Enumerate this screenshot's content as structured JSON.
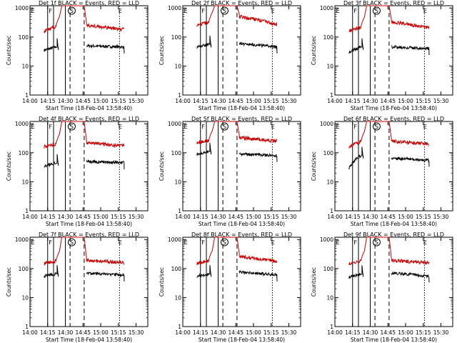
{
  "chart_data": [
    {
      "type": "line",
      "title": "Det 1f BLACK = Events, RED = LLD",
      "ylabel": "Counts/sec",
      "xlabel": "Start Time (18-Feb-04 13:58:40)",
      "x_ticks": [
        "14:00",
        "14:15",
        "14:30",
        "14:45",
        "15:00",
        "15:15",
        "15:30"
      ],
      "y_ticks": [
        "1",
        "10",
        "100",
        "1000"
      ],
      "yscale": "log",
      "ylim": [
        1,
        1200
      ],
      "flags": [
        "E",
        "F",
        "S",
        "E"
      ],
      "series": [
        {
          "name": "Events",
          "color": "#000000",
          "values": {
            "pre": [
              35,
              45
            ],
            "post": [
              50,
              45
            ]
          }
        },
        {
          "name": "LLD",
          "color": "#cc0000",
          "values": {
            "pre": [
              160,
              230
            ],
            "peak": 1000,
            "post": [
              250,
              180
            ]
          }
        }
      ]
    },
    {
      "type": "line",
      "title": "Det 2f BLACK = Events, RED = LLD",
      "ylabel": "Counts/sec",
      "xlabel": "Start Time (18-Feb-04 13:58:40)",
      "x_ticks": [
        "14:00",
        "14:15",
        "14:30",
        "14:45",
        "15:00",
        "15:15",
        "15:30"
      ],
      "y_ticks": [
        "1",
        "10",
        "100",
        "1000"
      ],
      "yscale": "log",
      "ylim": [
        1,
        1200
      ],
      "flags": [
        "E",
        "F",
        "S",
        "E"
      ],
      "series": [
        {
          "name": "Events",
          "color": "#000000",
          "values": {
            "pre": [
              45,
              55
            ],
            "post": [
              60,
              45
            ]
          }
        },
        {
          "name": "LLD",
          "color": "#cc0000",
          "values": {
            "pre": [
              260,
              320
            ],
            "peak": 1000,
            "post": [
              500,
              270
            ]
          }
        }
      ]
    },
    {
      "type": "line",
      "title": "Det 3f BLACK = Events, RED = LLD",
      "ylabel": "Counts/sec",
      "xlabel": "Start Time (18-Feb-04 13:58:40)",
      "x_ticks": [
        "14:00",
        "14:15",
        "14:30",
        "14:45",
        "15:00",
        "15:15",
        "15:30"
      ],
      "y_ticks": [
        "1",
        "10",
        "100",
        "1000"
      ],
      "yscale": "log",
      "ylim": [
        1,
        1200
      ],
      "flags": [
        "E",
        "F",
        "S",
        "E"
      ],
      "series": [
        {
          "name": "Events",
          "color": "#000000",
          "values": {
            "pre": [
              30,
              45
            ],
            "post": [
              45,
              40
            ]
          }
        },
        {
          "name": "LLD",
          "color": "#cc0000",
          "values": {
            "pre": [
              170,
              220
            ],
            "peak": 1000,
            "post": [
              330,
              200
            ]
          }
        }
      ]
    },
    {
      "type": "line",
      "title": "Det 4f BLACK = Events, RED = LLD",
      "ylabel": "Counts/sec",
      "xlabel": "Start Time (18-Feb-04 13:58:40)",
      "x_ticks": [
        "14:00",
        "14:15",
        "14:30",
        "14:45",
        "15:00",
        "15:15",
        "15:30"
      ],
      "y_ticks": [
        "1",
        "10",
        "100",
        "1000"
      ],
      "yscale": "log",
      "ylim": [
        1,
        1200
      ],
      "flags": [
        "E",
        "F",
        "S",
        "E"
      ],
      "series": [
        {
          "name": "Events",
          "color": "#000000",
          "values": {
            "pre": [
              35,
              45
            ],
            "post": [
              50,
              45
            ]
          }
        },
        {
          "name": "LLD",
          "color": "#cc0000",
          "values": {
            "pre": [
              160,
              200
            ],
            "peak": 1000,
            "post": [
              220,
              170
            ]
          }
        }
      ]
    },
    {
      "type": "line",
      "title": "Det 5f BLACK = Events, RED = LLD",
      "ylabel": "Counts/sec",
      "xlabel": "Start Time (18-Feb-04 13:58:40)",
      "x_ticks": [
        "14:00",
        "14:15",
        "14:30",
        "14:45",
        "15:00",
        "15:15",
        "15:30"
      ],
      "y_ticks": [
        "1",
        "10",
        "100",
        "1000"
      ],
      "yscale": "log",
      "ylim": [
        1,
        1200
      ],
      "flags": [
        "E",
        "F",
        "S",
        "E"
      ],
      "series": [
        {
          "name": "Events",
          "color": "#000000",
          "values": {
            "pre": [
              90,
              110
            ],
            "post": [
              90,
              80
            ]
          }
        },
        {
          "name": "LLD",
          "color": "#cc0000",
          "values": {
            "pre": [
              230,
              260
            ],
            "peak": 1000,
            "post": [
              330,
              250
            ]
          }
        }
      ]
    },
    {
      "type": "line",
      "title": "Det 6f BLACK = Events, RED = LLD",
      "ylabel": "Counts/sec",
      "xlabel": "Start Time (18-Feb-04 13:58:40)",
      "x_ticks": [
        "14:00",
        "14:15",
        "14:30",
        "14:45",
        "15:00",
        "15:15",
        "15:30"
      ],
      "y_ticks": [
        "1",
        "10",
        "100",
        "1000"
      ],
      "yscale": "log",
      "ylim": [
        1,
        1200
      ],
      "flags": [
        "E",
        "F",
        "S",
        "E"
      ],
      "series": [
        {
          "name": "Events",
          "color": "#000000",
          "values": {
            "pre": [
              30,
              80
            ],
            "post": [
              65,
              55
            ]
          }
        },
        {
          "name": "LLD",
          "color": "#cc0000",
          "values": {
            "pre": [
              160,
              240
            ],
            "peak": 1000,
            "post": [
              250,
              200
            ]
          }
        }
      ]
    },
    {
      "type": "line",
      "title": "Det 7f BLACK = Events, RED = LLD",
      "ylabel": "Counts/sec",
      "xlabel": "Start Time (18-Feb-04 13:58:40)",
      "x_ticks": [
        "14:00",
        "14:15",
        "14:30",
        "14:45",
        "15:00",
        "15:15",
        "15:30"
      ],
      "y_ticks": [
        "1",
        "10",
        "100",
        "1000"
      ],
      "yscale": "log",
      "ylim": [
        1,
        1200
      ],
      "flags": [
        "E",
        "F",
        "S",
        "E"
      ],
      "series": [
        {
          "name": "Events",
          "color": "#000000",
          "values": {
            "pre": [
              55,
              65
            ],
            "post": [
              70,
              60
            ]
          }
        },
        {
          "name": "LLD",
          "color": "#cc0000",
          "values": {
            "pre": [
              150,
              180
            ],
            "peak": 1000,
            "post": [
              190,
              160
            ]
          }
        }
      ]
    },
    {
      "type": "line",
      "title": "Det 8f BLACK = Events, RED = LLD",
      "ylabel": "Counts/sec",
      "xlabel": "Start Time (18-Feb-04 13:58:40)",
      "x_ticks": [
        "14:00",
        "14:15",
        "14:30",
        "14:45",
        "15:00",
        "15:15",
        "15:30"
      ],
      "y_ticks": [
        "1",
        "10",
        "100",
        "1000"
      ],
      "yscale": "log",
      "ylim": [
        1,
        1200
      ],
      "flags": [
        "E",
        "F",
        "S",
        "E"
      ],
      "series": [
        {
          "name": "Events",
          "color": "#000000",
          "values": {
            "pre": [
              55,
              65
            ],
            "post": [
              75,
              60
            ]
          }
        },
        {
          "name": "LLD",
          "color": "#cc0000",
          "values": {
            "pre": [
              150,
              190
            ],
            "peak": 1000,
            "post": [
              260,
              180
            ]
          }
        }
      ]
    },
    {
      "type": "line",
      "title": "Det 9f BLACK = Events, RED = LLD",
      "ylabel": "Counts/sec",
      "xlabel": "Start Time (18-Feb-04 13:58:40)",
      "x_ticks": [
        "14:00",
        "14:15",
        "14:30",
        "14:45",
        "15:00",
        "15:15",
        "15:30"
      ],
      "y_ticks": [
        "1",
        "10",
        "100",
        "1000"
      ],
      "yscale": "log",
      "ylim": [
        1,
        1200
      ],
      "flags": [
        "E",
        "F",
        "S",
        "E"
      ],
      "series": [
        {
          "name": "Events",
          "color": "#000000",
          "values": {
            "pre": [
              50,
              65
            ],
            "post": [
              70,
              55
            ]
          }
        },
        {
          "name": "LLD",
          "color": "#cc0000",
          "values": {
            "pre": [
              150,
              180
            ],
            "peak": 1000,
            "post": [
              190,
              160
            ]
          }
        }
      ]
    }
  ]
}
